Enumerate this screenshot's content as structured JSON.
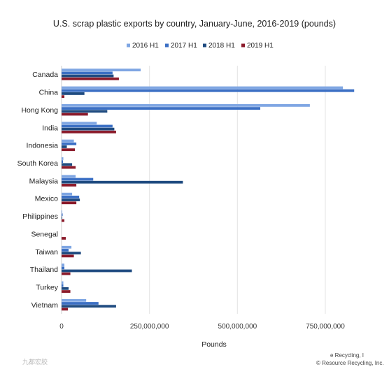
{
  "colors": {
    "series": [
      "#7fa6e3",
      "#3b6fc4",
      "#1f4b80",
      "#8b1a2a"
    ],
    "grid": "#e3e3e3",
    "background": "#ffffff"
  },
  "credit": {
    "line1": "e Recycling, I",
    "line2": "© Resource Recycling, Inc."
  },
  "watermark": {
    "text": "九都宏胶"
  },
  "chart_data": {
    "type": "bar",
    "orientation": "horizontal",
    "title": "U.S. scrap plastic exports by country, January-June, 2016-2019 (pounds)",
    "xlabel": "Pounds",
    "ylabel": "",
    "xlim": [
      0,
      1000000000
    ],
    "x_ticks": [
      0,
      250000000,
      500000000,
      750000000
    ],
    "x_tick_labels": [
      "0",
      "250,000,000",
      "500,000,000",
      "750,000,000"
    ],
    "grid": true,
    "legend_position": "top",
    "categories": [
      "Canada",
      "China",
      "Hong Kong",
      "India",
      "Indonesia",
      "South Korea",
      "Malaysia",
      "Mexico",
      "Philippines",
      "Senegal",
      "Taiwan",
      "Thailand",
      "Turkey",
      "Vietnam"
    ],
    "series": [
      {
        "name": "2016 H1",
        "values": [
          225000000,
          800000000,
          706000000,
          100000000,
          35000000,
          5000000,
          40000000,
          30000000,
          2000000,
          0,
          28000000,
          8000000,
          5000000,
          70000000
        ]
      },
      {
        "name": "2017 H1",
        "values": [
          145000000,
          832000000,
          565000000,
          145000000,
          42000000,
          4000000,
          90000000,
          50000000,
          3000000,
          0,
          20000000,
          8000000,
          5000000,
          105000000
        ]
      },
      {
        "name": "2018 H1",
        "values": [
          148000000,
          65000000,
          130000000,
          150000000,
          15000000,
          30000000,
          345000000,
          52000000,
          2000000,
          0,
          55000000,
          200000000,
          20000000,
          155000000
        ]
      },
      {
        "name": "2019 H1",
        "values": [
          163000000,
          8000000,
          75000000,
          155000000,
          38000000,
          40000000,
          42000000,
          42000000,
          8000000,
          12000000,
          35000000,
          25000000,
          25000000,
          18000000
        ]
      }
    ]
  }
}
